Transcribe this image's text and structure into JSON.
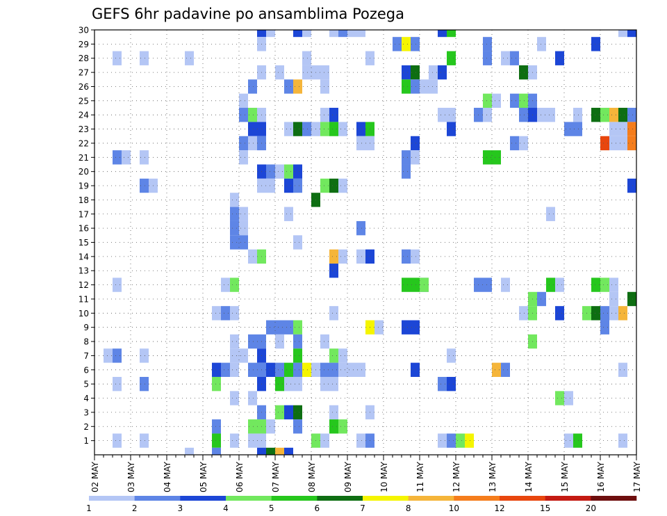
{
  "chart_data": {
    "type": "heatmap",
    "title": "GEFS 6hr padavine po ansamblima Pozega",
    "xlabel": "",
    "ylabel": "",
    "x_tick_labels": [
      "02 MAY",
      "03 MAY",
      "04 MAY",
      "05 MAY",
      "06 MAY",
      "07 MAY",
      "08 MAY",
      "09 MAY",
      "10 MAY",
      "11 MAY",
      "12 MAY",
      "13 MAY",
      "14 MAY",
      "15 MAY",
      "16 MAY",
      "17 MAY"
    ],
    "y_tick_labels": [
      "1",
      "2",
      "3",
      "4",
      "5",
      "6",
      "7",
      "8",
      "9",
      "10",
      "11",
      "12",
      "13",
      "14",
      "15",
      "16",
      "17",
      "18",
      "19",
      "20",
      "21",
      "22",
      "23",
      "24",
      "25",
      "26",
      "27",
      "28",
      "29",
      "30"
    ],
    "ylim": [
      0,
      30
    ],
    "time_steps_per_day": 4,
    "grid": "dotted",
    "legend": {
      "placement": "bottom",
      "labels": [
        "1",
        "2",
        "3",
        "4",
        "5",
        "6",
        "7",
        "8",
        "10",
        "12",
        "15",
        "20"
      ],
      "colors": [
        "#b4c6f5",
        "#5e85e6",
        "#1c46d6",
        "#72e85e",
        "#26c71d",
        "#0e6e12",
        "#f5f500",
        "#f5b53a",
        "#f57d1c",
        "#e8460e",
        "#c41a12",
        "#6e0e0e"
      ]
    },
    "cells": [
      [
        30,
        18,
        3
      ],
      [
        30,
        22,
        3
      ],
      [
        30,
        19,
        1
      ],
      [
        30,
        23,
        1
      ],
      [
        30,
        26,
        1
      ],
      [
        30,
        27,
        2
      ],
      [
        30,
        28,
        1
      ],
      [
        30,
        29,
        1
      ],
      [
        30,
        38,
        3
      ],
      [
        30,
        39,
        5
      ],
      [
        30,
        58,
        1
      ],
      [
        30,
        59,
        3
      ],
      [
        30,
        60,
        3
      ],
      [
        29,
        18,
        1
      ],
      [
        29,
        33,
        2
      ],
      [
        29,
        34,
        7
      ],
      [
        29,
        35,
        2
      ],
      [
        29,
        43,
        2
      ],
      [
        29,
        49,
        1
      ],
      [
        29,
        55,
        3
      ],
      [
        28,
        2,
        1
      ],
      [
        28,
        5,
        1
      ],
      [
        28,
        10,
        1
      ],
      [
        28,
        23,
        1
      ],
      [
        28,
        30,
        1
      ],
      [
        28,
        39,
        5
      ],
      [
        28,
        43,
        2
      ],
      [
        28,
        45,
        1
      ],
      [
        28,
        46,
        2
      ],
      [
        28,
        51,
        3
      ],
      [
        27,
        18,
        1
      ],
      [
        27,
        20,
        1
      ],
      [
        27,
        23,
        1
      ],
      [
        27,
        24,
        1
      ],
      [
        27,
        25,
        1
      ],
      [
        27,
        34,
        3
      ],
      [
        27,
        35,
        6
      ],
      [
        27,
        37,
        1
      ],
      [
        27,
        38,
        3
      ],
      [
        27,
        47,
        6
      ],
      [
        27,
        48,
        1
      ],
      [
        26,
        17,
        2
      ],
      [
        26,
        21,
        2
      ],
      [
        26,
        22,
        8
      ],
      [
        26,
        25,
        1
      ],
      [
        26,
        34,
        5
      ],
      [
        26,
        35,
        2
      ],
      [
        26,
        36,
        1
      ],
      [
        26,
        37,
        1
      ],
      [
        25,
        16,
        1
      ],
      [
        25,
        43,
        4
      ],
      [
        25,
        44,
        1
      ],
      [
        25,
        46,
        2
      ],
      [
        25,
        47,
        4
      ],
      [
        25,
        48,
        2
      ],
      [
        24,
        16,
        2
      ],
      [
        24,
        17,
        4
      ],
      [
        24,
        18,
        1
      ],
      [
        24,
        25,
        1
      ],
      [
        24,
        26,
        3
      ],
      [
        24,
        38,
        1
      ],
      [
        24,
        39,
        1
      ],
      [
        24,
        42,
        2
      ],
      [
        24,
        43,
        1
      ],
      [
        24,
        47,
        2
      ],
      [
        24,
        48,
        3
      ],
      [
        24,
        49,
        1
      ],
      [
        24,
        50,
        1
      ],
      [
        24,
        53,
        1
      ],
      [
        24,
        55,
        6
      ],
      [
        24,
        56,
        4
      ],
      [
        24,
        57,
        8
      ],
      [
        24,
        58,
        6
      ],
      [
        24,
        59,
        2
      ],
      [
        24,
        60,
        4
      ],
      [
        23,
        17,
        3
      ],
      [
        23,
        18,
        3
      ],
      [
        23,
        21,
        1
      ],
      [
        23,
        22,
        6
      ],
      [
        23,
        23,
        2
      ],
      [
        23,
        24,
        1
      ],
      [
        23,
        25,
        4
      ],
      [
        23,
        26,
        5
      ],
      [
        23,
        27,
        1
      ],
      [
        23,
        29,
        3
      ],
      [
        23,
        30,
        5
      ],
      [
        23,
        39,
        3
      ],
      [
        23,
        52,
        2
      ],
      [
        23,
        53,
        2
      ],
      [
        23,
        57,
        1
      ],
      [
        23,
        58,
        1
      ],
      [
        23,
        59,
        9
      ],
      [
        23,
        60,
        9
      ],
      [
        22,
        16,
        2
      ],
      [
        22,
        17,
        1
      ],
      [
        22,
        18,
        2
      ],
      [
        22,
        29,
        1
      ],
      [
        22,
        30,
        1
      ],
      [
        22,
        35,
        3
      ],
      [
        22,
        46,
        2
      ],
      [
        22,
        47,
        1
      ],
      [
        22,
        56,
        10
      ],
      [
        22,
        57,
        1
      ],
      [
        22,
        58,
        1
      ],
      [
        22,
        59,
        9
      ],
      [
        22,
        60,
        9
      ],
      [
        21,
        2,
        2
      ],
      [
        21,
        3,
        1
      ],
      [
        21,
        5,
        1
      ],
      [
        21,
        16,
        1
      ],
      [
        21,
        34,
        2
      ],
      [
        21,
        35,
        1
      ],
      [
        21,
        43,
        5
      ],
      [
        21,
        44,
        5
      ],
      [
        20,
        18,
        3
      ],
      [
        20,
        19,
        2
      ],
      [
        20,
        20,
        1
      ],
      [
        20,
        21,
        4
      ],
      [
        20,
        22,
        3
      ],
      [
        20,
        34,
        2
      ],
      [
        19,
        5,
        2
      ],
      [
        19,
        6,
        1
      ],
      [
        19,
        18,
        1
      ],
      [
        19,
        19,
        1
      ],
      [
        19,
        21,
        3
      ],
      [
        19,
        22,
        2
      ],
      [
        19,
        25,
        4
      ],
      [
        19,
        26,
        6
      ],
      [
        19,
        27,
        1
      ],
      [
        19,
        59,
        3
      ],
      [
        19,
        60,
        2
      ],
      [
        18,
        15,
        1
      ],
      [
        18,
        24,
        6
      ],
      [
        17,
        15,
        2
      ],
      [
        17,
        16,
        1
      ],
      [
        17,
        21,
        1
      ],
      [
        17,
        50,
        1
      ],
      [
        16,
        15,
        2
      ],
      [
        16,
        16,
        1
      ],
      [
        16,
        29,
        2
      ],
      [
        15,
        15,
        2
      ],
      [
        15,
        16,
        2
      ],
      [
        15,
        22,
        1
      ],
      [
        14,
        17,
        1
      ],
      [
        14,
        18,
        4
      ],
      [
        14,
        26,
        8
      ],
      [
        14,
        27,
        1
      ],
      [
        14,
        29,
        1
      ],
      [
        14,
        30,
        3
      ],
      [
        14,
        34,
        2
      ],
      [
        14,
        35,
        1
      ],
      [
        13,
        26,
        3
      ],
      [
        12,
        36,
        2
      ],
      [
        12,
        2,
        1
      ],
      [
        12,
        14,
        1
      ],
      [
        12,
        15,
        4
      ],
      [
        12,
        34,
        5
      ],
      [
        12,
        35,
        5
      ],
      [
        12,
        36,
        4
      ],
      [
        12,
        42,
        2
      ],
      [
        12,
        43,
        2
      ],
      [
        12,
        45,
        1
      ],
      [
        12,
        50,
        5
      ],
      [
        12,
        51,
        1
      ],
      [
        12,
        55,
        5
      ],
      [
        12,
        56,
        4
      ],
      [
        12,
        57,
        1
      ],
      [
        11,
        48,
        4
      ],
      [
        11,
        49,
        2
      ],
      [
        11,
        57,
        1
      ],
      [
        11,
        59,
        6
      ],
      [
        11,
        60,
        6
      ],
      [
        10,
        13,
        1
      ],
      [
        10,
        14,
        2
      ],
      [
        10,
        15,
        1
      ],
      [
        10,
        26,
        1
      ],
      [
        10,
        47,
        1
      ],
      [
        10,
        48,
        4
      ],
      [
        10,
        51,
        3
      ],
      [
        10,
        54,
        4
      ],
      [
        10,
        55,
        6
      ],
      [
        10,
        56,
        2
      ],
      [
        10,
        57,
        1
      ],
      [
        10,
        58,
        8
      ],
      [
        9,
        19,
        2
      ],
      [
        9,
        20,
        2
      ],
      [
        9,
        21,
        2
      ],
      [
        9,
        22,
        4
      ],
      [
        9,
        30,
        7
      ],
      [
        9,
        31,
        1
      ],
      [
        9,
        34,
        3
      ],
      [
        9,
        35,
        3
      ],
      [
        9,
        56,
        2
      ],
      [
        9,
        60,
        2
      ],
      [
        8,
        15,
        1
      ],
      [
        8,
        17,
        2
      ],
      [
        8,
        18,
        2
      ],
      [
        8,
        20,
        1
      ],
      [
        8,
        22,
        2
      ],
      [
        8,
        25,
        1
      ],
      [
        8,
        48,
        4
      ],
      [
        7,
        1,
        1
      ],
      [
        7,
        2,
        2
      ],
      [
        7,
        5,
        1
      ],
      [
        7,
        15,
        1
      ],
      [
        7,
        16,
        1
      ],
      [
        7,
        18,
        3
      ],
      [
        7,
        22,
        5
      ],
      [
        7,
        26,
        4
      ],
      [
        7,
        27,
        1
      ],
      [
        7,
        39,
        1
      ],
      [
        6,
        13,
        3
      ],
      [
        6,
        14,
        2
      ],
      [
        6,
        15,
        1
      ],
      [
        6,
        17,
        2
      ],
      [
        6,
        18,
        2
      ],
      [
        6,
        19,
        3
      ],
      [
        6,
        20,
        2
      ],
      [
        6,
        21,
        5
      ],
      [
        6,
        22,
        2
      ],
      [
        6,
        23,
        7
      ],
      [
        6,
        24,
        1
      ],
      [
        6,
        25,
        2
      ],
      [
        6,
        26,
        2
      ],
      [
        6,
        27,
        1
      ],
      [
        6,
        28,
        1
      ],
      [
        6,
        29,
        1
      ],
      [
        6,
        35,
        3
      ],
      [
        6,
        44,
        8
      ],
      [
        6,
        45,
        2
      ],
      [
        6,
        58,
        1
      ],
      [
        5,
        2,
        1
      ],
      [
        5,
        5,
        2
      ],
      [
        5,
        13,
        4
      ],
      [
        5,
        18,
        3
      ],
      [
        5,
        20,
        5
      ],
      [
        5,
        21,
        1
      ],
      [
        5,
        22,
        1
      ],
      [
        5,
        25,
        1
      ],
      [
        5,
        26,
        1
      ],
      [
        5,
        38,
        2
      ],
      [
        5,
        39,
        3
      ],
      [
        4,
        15,
        1
      ],
      [
        4,
        17,
        1
      ],
      [
        4,
        51,
        4
      ],
      [
        4,
        52,
        1
      ],
      [
        3,
        18,
        2
      ],
      [
        3,
        20,
        4
      ],
      [
        3,
        21,
        3
      ],
      [
        3,
        22,
        6
      ],
      [
        3,
        26,
        1
      ],
      [
        3,
        30,
        1
      ],
      [
        2,
        13,
        2
      ],
      [
        2,
        17,
        4
      ],
      [
        2,
        18,
        4
      ],
      [
        2,
        19,
        1
      ],
      [
        2,
        22,
        2
      ],
      [
        2,
        26,
        5
      ],
      [
        2,
        27,
        4
      ],
      [
        1,
        2,
        1
      ],
      [
        1,
        5,
        1
      ],
      [
        1,
        13,
        5
      ],
      [
        1,
        15,
        1
      ],
      [
        1,
        17,
        1
      ],
      [
        1,
        18,
        1
      ],
      [
        1,
        24,
        4
      ],
      [
        1,
        25,
        1
      ],
      [
        1,
        29,
        1
      ],
      [
        1,
        30,
        2
      ],
      [
        1,
        38,
        1
      ],
      [
        1,
        39,
        2
      ],
      [
        1,
        40,
        4
      ],
      [
        1,
        41,
        7
      ],
      [
        1,
        52,
        1
      ],
      [
        1,
        53,
        5
      ],
      [
        1,
        58,
        1
      ],
      [
        0,
        10,
        1
      ],
      [
        0,
        13,
        2
      ],
      [
        0,
        18,
        3
      ],
      [
        0,
        19,
        6
      ],
      [
        0,
        20,
        8
      ],
      [
        0,
        21,
        3
      ]
    ]
  }
}
